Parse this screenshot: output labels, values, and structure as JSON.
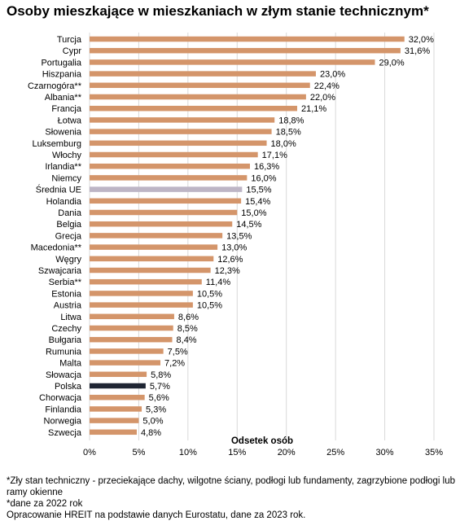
{
  "chart_data": {
    "type": "bar",
    "orientation": "horizontal",
    "title": "Osoby mieszkające w mieszkaniach w złym stanie technicznym*",
    "xlabel": "Odsetek osób",
    "ylabel": "",
    "xlim": [
      0,
      35
    ],
    "x_ticks": [
      "0%",
      "5%",
      "10%",
      "15%",
      "20%",
      "25%",
      "30%",
      "35%"
    ],
    "grid": "vertical",
    "colors": {
      "default": "#D4956A",
      "highlight_eu": "#BDB5C5",
      "highlight_pl": "#1F2533",
      "grid": "#D9D9D9"
    },
    "categories": [
      "Turcja",
      "Cypr",
      "Portugalia",
      "Hiszpania",
      "Czarnogóra**",
      "Albania**",
      "Francja",
      "Łotwa",
      "Słowenia",
      "Luksemburg",
      "Włochy",
      "Irlandia**",
      "Niemcy",
      "Średnia UE",
      "Holandia",
      "Dania",
      "Belgia",
      "Grecja",
      "Macedonia**",
      "Węgry",
      "Szwajcaria",
      "Serbia**",
      "Estonia",
      "Austria",
      "Litwa",
      "Czechy",
      "Bułgaria",
      "Rumunia",
      "Malta",
      "Słowacja",
      "Polska",
      "Chorwacja",
      "Finlandia",
      "Norwegia",
      "Szwecja"
    ],
    "values": [
      32.0,
      31.6,
      29.0,
      23.0,
      22.4,
      22.0,
      21.1,
      18.8,
      18.5,
      18.0,
      17.1,
      16.3,
      16.0,
      15.5,
      15.4,
      15.0,
      14.5,
      13.5,
      13.0,
      12.6,
      12.3,
      11.4,
      10.5,
      10.5,
      8.6,
      8.5,
      8.4,
      7.5,
      7.2,
      5.8,
      5.7,
      5.6,
      5.3,
      5.0,
      4.8
    ],
    "value_labels": [
      "32,0%",
      "31,6%",
      "29,0%",
      "23,0%",
      "22,4%",
      "22,0%",
      "21,1%",
      "18,8%",
      "18,5%",
      "18,0%",
      "17,1%",
      "16,3%",
      "16,0%",
      "15,5%",
      "15,4%",
      "15,0%",
      "14,5%",
      "13,5%",
      "13,0%",
      "12,6%",
      "12,3%",
      "11,4%",
      "10,5%",
      "10,5%",
      "8,6%",
      "8,5%",
      "8,4%",
      "7,5%",
      "7,2%",
      "5,8%",
      "5,7%",
      "5,6%",
      "5,3%",
      "5,0%",
      "4,8%"
    ],
    "highlights": {
      "Średnia UE": "highlight_eu",
      "Polska": "highlight_pl"
    }
  },
  "notes": [
    "*Zły stan techniczny - przeciekające dachy, wilgotne ściany, podłogi lub fundamenty, zagrzybione podłogi lub ramy okienne",
    "*dane za 2022 rok",
    "Opracowanie HREIT na podstawie danych Eurostatu, dane za 2023 rok."
  ]
}
